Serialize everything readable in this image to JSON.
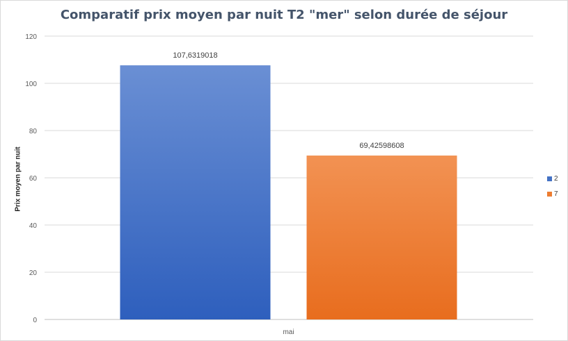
{
  "chart_data": {
    "type": "bar",
    "title": "Comparatif  prix moyen par nuit T2 \"mer\" selon durée de séjour",
    "xlabel": "",
    "ylabel": "Prix moyen par nuit",
    "categories": [
      "mai"
    ],
    "ylim": [
      0,
      120
    ],
    "yticks": [
      "0",
      "20",
      "40",
      "60",
      "80",
      "100",
      "120"
    ],
    "grid": true,
    "legend_position": "right",
    "series": [
      {
        "name": "2",
        "values": [
          107.6319018
        ],
        "label": "107,6319018",
        "color": "#4472c4"
      },
      {
        "name": "7",
        "values": [
          69.42598608
        ],
        "label": "69,42598608",
        "color": "#ed7d31"
      }
    ]
  }
}
